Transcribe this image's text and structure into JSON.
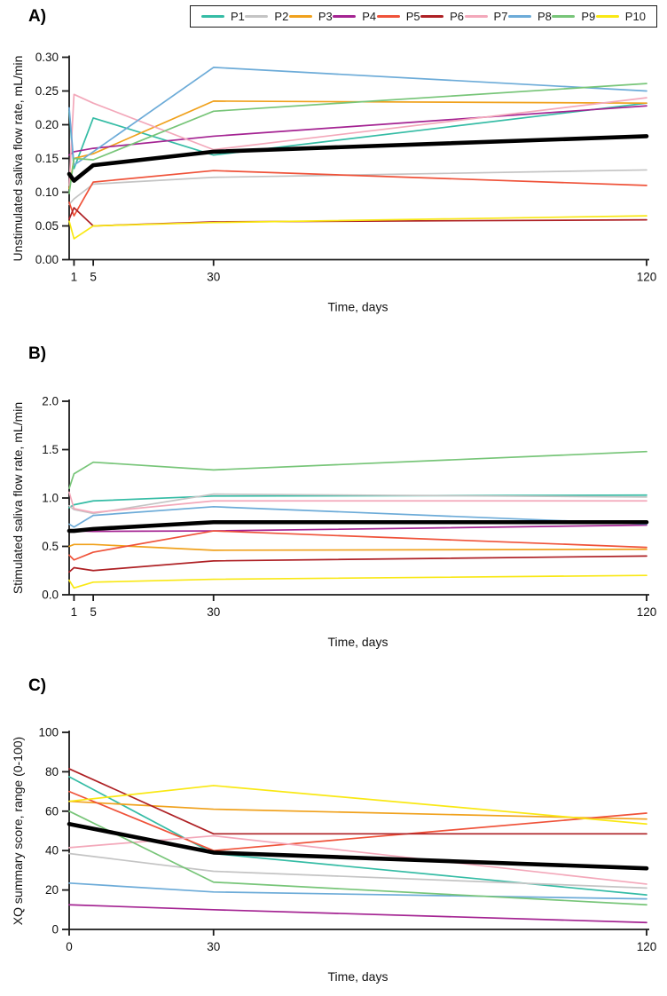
{
  "legend": {
    "items": [
      {
        "label": "P1",
        "color": "#35bca5"
      },
      {
        "label": "P2",
        "color": "#c4c4c4"
      },
      {
        "label": "P3",
        "color": "#f0a11c"
      },
      {
        "label": "P4",
        "color": "#a42392"
      },
      {
        "label": "P5",
        "color": "#ef5239"
      },
      {
        "label": "P6",
        "color": "#ae2024"
      },
      {
        "label": "P7",
        "color": "#f3a8ba"
      },
      {
        "label": "P8",
        "color": "#6cabd8"
      },
      {
        "label": "P9",
        "color": "#77c578"
      },
      {
        "label": "P10",
        "color": "#f9e814"
      }
    ],
    "mean_color": "#000000"
  },
  "panels": [
    {
      "letter": "A)"
    },
    {
      "letter": "B)"
    },
    {
      "letter": "C)"
    }
  ],
  "chart_data": [
    {
      "type": "line",
      "title": "",
      "xlabel": "Time, days",
      "ylabel": "Unstimulated saliva flow rate, mL/min",
      "x": [
        0,
        1,
        5,
        30,
        120
      ],
      "xlim": [
        0,
        120
      ],
      "ylim": [
        0,
        0.3
      ],
      "xtick_values": [
        1,
        5,
        30,
        120
      ],
      "xtick_labels": [
        "1",
        "5",
        "30",
        "120"
      ],
      "ytick_values": [
        0,
        0.05,
        0.1,
        0.15,
        0.2,
        0.25,
        0.3
      ],
      "ytick_labels": [
        "0.00",
        "0.05",
        "0.10",
        "0.15",
        "0.20",
        "0.25",
        "0.30"
      ],
      "grid": false,
      "legend_position": "top-outside",
      "series": [
        {
          "name": "P1",
          "color": "#35bca5",
          "values": [
            0.22,
            0.135,
            0.21,
            0.155,
            0.232
          ]
        },
        {
          "name": "P2",
          "color": "#c4c4c4",
          "values": [
            0.082,
            0.09,
            0.112,
            0.122,
            0.133
          ]
        },
        {
          "name": "P3",
          "color": "#f0a11c",
          "values": [
            0.105,
            0.15,
            0.157,
            0.235,
            0.232
          ]
        },
        {
          "name": "P4",
          "color": "#a42392",
          "values": [
            0.155,
            0.16,
            0.165,
            0.183,
            0.228
          ]
        },
        {
          "name": "P5",
          "color": "#ef5239",
          "values": [
            0.085,
            0.065,
            0.115,
            0.132,
            0.11
          ]
        },
        {
          "name": "P6",
          "color": "#ae2024",
          "values": [
            0.06,
            0.077,
            0.05,
            0.056,
            0.059
          ]
        },
        {
          "name": "P7",
          "color": "#f3a8ba",
          "values": [
            0.11,
            0.245,
            0.232,
            0.163,
            0.24
          ]
        },
        {
          "name": "P8",
          "color": "#6cabd8",
          "values": [
            0.225,
            0.14,
            0.16,
            0.285,
            0.25
          ]
        },
        {
          "name": "P9",
          "color": "#77c578",
          "values": [
            0.098,
            0.15,
            0.148,
            0.22,
            0.261
          ]
        },
        {
          "name": "P10",
          "color": "#f9e814",
          "values": [
            0.057,
            0.031,
            0.05,
            0.055,
            0.065
          ]
        },
        {
          "name": "Mean",
          "color": "#000000",
          "values": [
            0.127,
            0.117,
            0.14,
            0.16,
            0.183
          ],
          "bold": true
        }
      ]
    },
    {
      "type": "line",
      "title": "",
      "xlabel": "Time, days",
      "ylabel": "Stimulated saliva flow rate, mL/min",
      "x": [
        0,
        1,
        5,
        30,
        120
      ],
      "xlim": [
        0,
        120
      ],
      "ylim": [
        0,
        2.0
      ],
      "xtick_values": [
        1,
        5,
        30,
        120
      ],
      "xtick_labels": [
        "1",
        "5",
        "30",
        "120"
      ],
      "ytick_values": [
        0,
        0.5,
        1.0,
        1.5,
        2.0
      ],
      "ytick_labels": [
        "0.0",
        "0.5",
        "1.0",
        "1.5",
        "2.0"
      ],
      "grid": false,
      "legend_position": "top-outside",
      "series": [
        {
          "name": "P1",
          "color": "#35bca5",
          "values": [
            0.9,
            0.93,
            0.97,
            1.02,
            1.03
          ]
        },
        {
          "name": "P2",
          "color": "#c4c4c4",
          "values": [
            0.92,
            0.88,
            0.84,
            1.04,
            1.01
          ]
        },
        {
          "name": "P3",
          "color": "#f0a11c",
          "values": [
            0.5,
            0.52,
            0.52,
            0.46,
            0.47
          ]
        },
        {
          "name": "P4",
          "color": "#a42392",
          "values": [
            0.67,
            0.66,
            0.655,
            0.66,
            0.72
          ]
        },
        {
          "name": "P5",
          "color": "#ef5239",
          "values": [
            0.41,
            0.36,
            0.44,
            0.66,
            0.49
          ]
        },
        {
          "name": "P6",
          "color": "#ae2024",
          "values": [
            0.235,
            0.28,
            0.25,
            0.35,
            0.4
          ]
        },
        {
          "name": "P7",
          "color": "#f3a8ba",
          "values": [
            1.06,
            0.89,
            0.85,
            0.97,
            0.97
          ]
        },
        {
          "name": "P8",
          "color": "#6cabd8",
          "values": [
            0.73,
            0.7,
            0.82,
            0.91,
            0.73
          ]
        },
        {
          "name": "P9",
          "color": "#77c578",
          "values": [
            1.1,
            1.25,
            1.37,
            1.29,
            1.48
          ]
        },
        {
          "name": "P10",
          "color": "#f9e814",
          "values": [
            0.15,
            0.07,
            0.13,
            0.16,
            0.2
          ]
        },
        {
          "name": "Mean",
          "color": "#000000",
          "values": [
            0.66,
            0.66,
            0.68,
            0.75,
            0.75
          ],
          "bold": true
        }
      ]
    },
    {
      "type": "line",
      "title": "",
      "xlabel": "Time, days",
      "ylabel": "XQ summary score, range (0-100)",
      "x": [
        0,
        30,
        120
      ],
      "xlim": [
        0,
        120
      ],
      "ylim": [
        0,
        100
      ],
      "xtick_values": [
        0,
        30,
        120
      ],
      "xtick_labels": [
        "0",
        "30",
        "120"
      ],
      "ytick_values": [
        0,
        20,
        40,
        60,
        80,
        100
      ],
      "ytick_labels": [
        "0",
        "20",
        "40",
        "60",
        "80",
        "100"
      ],
      "grid": false,
      "legend_position": "top-outside",
      "series": [
        {
          "name": "P1",
          "color": "#35bca5",
          "values": [
            77.5,
            38.5,
            17.5
          ]
        },
        {
          "name": "P2",
          "color": "#c4c4c4",
          "values": [
            38.5,
            29.5,
            21.0
          ]
        },
        {
          "name": "P3",
          "color": "#f0a11c",
          "values": [
            65.0,
            61.0,
            56.0
          ]
        },
        {
          "name": "P4",
          "color": "#a42392",
          "values": [
            12.5,
            10.0,
            3.5
          ]
        },
        {
          "name": "P5",
          "color": "#ef5239",
          "values": [
            70.0,
            40.0,
            59.0
          ]
        },
        {
          "name": "P6",
          "color": "#ae2024",
          "values": [
            81.5,
            48.5,
            48.5
          ]
        },
        {
          "name": "P7",
          "color": "#f3a8ba",
          "values": [
            41.5,
            47.5,
            23.0
          ]
        },
        {
          "name": "P8",
          "color": "#6cabd8",
          "values": [
            23.5,
            19.0,
            15.5
          ]
        },
        {
          "name": "P9",
          "color": "#77c578",
          "values": [
            60.0,
            24.0,
            12.5
          ]
        },
        {
          "name": "P10",
          "color": "#f9e814",
          "values": [
            65.0,
            73.0,
            53.5
          ]
        },
        {
          "name": "Mean",
          "color": "#000000",
          "values": [
            53.5,
            39.0,
            31.0
          ],
          "bold": true
        }
      ]
    }
  ]
}
